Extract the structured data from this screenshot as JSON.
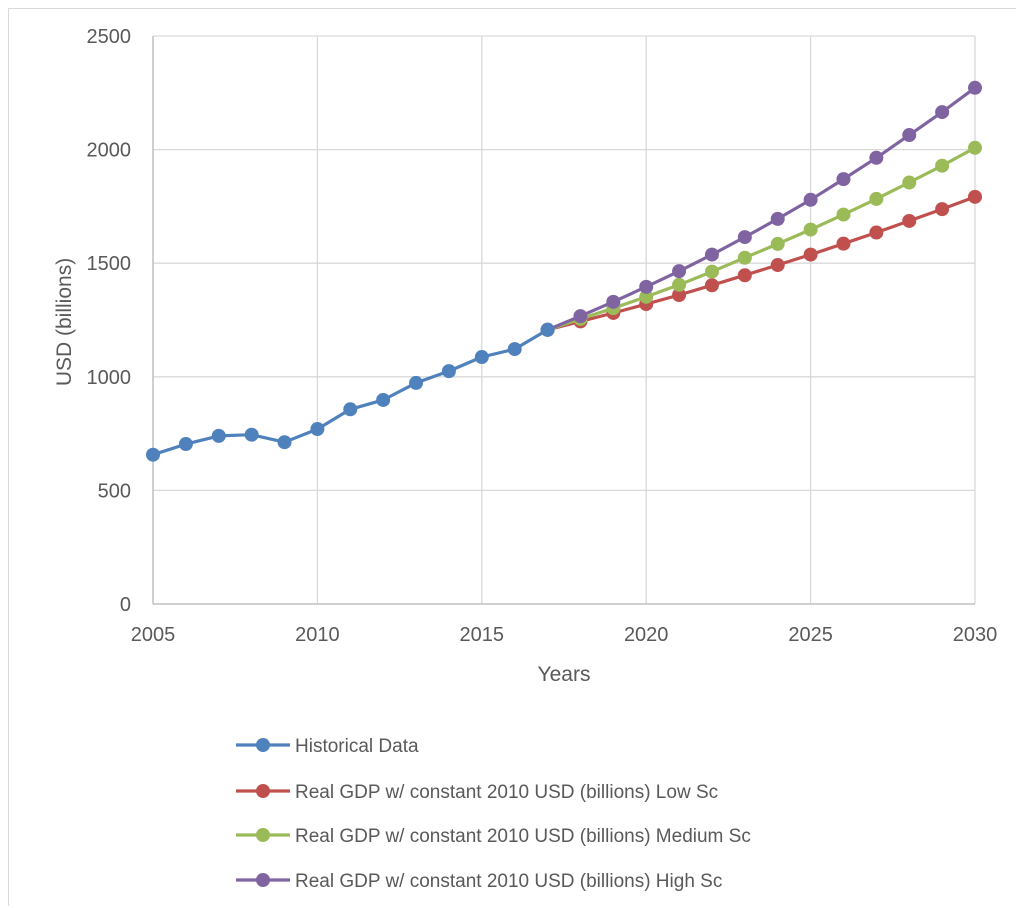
{
  "chart_data": {
    "type": "line",
    "title": "",
    "xlabel": "Years",
    "ylabel": "USD (billions)",
    "xlim": [
      2005,
      2030
    ],
    "ylim": [
      0,
      2500
    ],
    "x_ticks": [
      2005,
      2010,
      2015,
      2020,
      2025,
      2030
    ],
    "y_ticks": [
      0,
      500,
      1000,
      1500,
      2000,
      2500
    ],
    "grid": true,
    "legend_position": "bottom",
    "series": [
      {
        "name": "Historical Data",
        "color": "#4f81bd",
        "x": [
          2005,
          2006,
          2007,
          2008,
          2009,
          2010,
          2011,
          2012,
          2013,
          2014,
          2015,
          2016,
          2017
        ],
        "y": [
          657,
          704,
          740,
          745,
          712,
          770,
          857,
          898,
          973,
          1025,
          1087,
          1122,
          1207
        ]
      },
      {
        "name": "Real GDP w/ constant 2010 USD (billions) Low Sc",
        "color": "#c0504d",
        "x": [
          2017,
          2018,
          2019,
          2020,
          2021,
          2022,
          2023,
          2024,
          2025,
          2026,
          2027,
          2028,
          2029,
          2030
        ],
        "y": [
          1207,
          1244,
          1281,
          1320,
          1360,
          1403,
          1447,
          1492,
          1538,
          1586,
          1635,
          1686,
          1738,
          1792
        ]
      },
      {
        "name": "Real GDP w/ constant 2010 USD (billions) Medium Sc",
        "color": "#9bbb59",
        "x": [
          2017,
          2018,
          2019,
          2020,
          2021,
          2022,
          2023,
          2024,
          2025,
          2026,
          2027,
          2028,
          2029,
          2030
        ],
        "y": [
          1207,
          1255,
          1302,
          1352,
          1405,
          1463,
          1524,
          1585,
          1648,
          1714,
          1783,
          1855,
          1929,
          2008
        ]
      },
      {
        "name": "Real GDP w/ constant 2010 USD (billions) High Sc",
        "color": "#8064a2",
        "x": [
          2017,
          2018,
          2019,
          2020,
          2021,
          2022,
          2023,
          2024,
          2025,
          2026,
          2027,
          2028,
          2029,
          2030
        ],
        "y": [
          1207,
          1267,
          1330,
          1396,
          1465,
          1538,
          1615,
          1695,
          1779,
          1870,
          1964,
          2064,
          2165,
          2272
        ]
      }
    ]
  }
}
